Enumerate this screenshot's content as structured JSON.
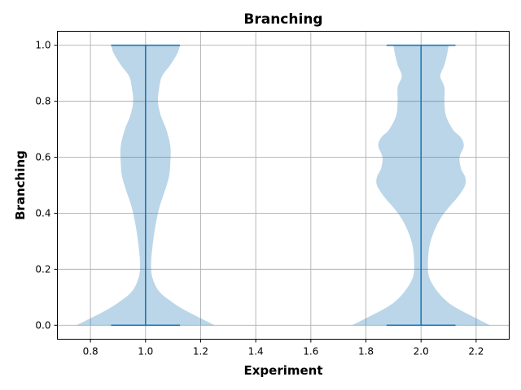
{
  "chart_data": {
    "type": "violin",
    "title": "Branching",
    "xlabel": "Experiment",
    "ylabel": "Branching",
    "xlim": [
      0.68,
      2.32
    ],
    "ylim": [
      -0.05,
      1.05
    ],
    "xticks": [
      0.8,
      1.0,
      1.2,
      1.4,
      1.6,
      1.8,
      2.0,
      2.2
    ],
    "xtick_labels": [
      "0.8",
      "1.0",
      "1.2",
      "1.4",
      "1.6",
      "1.8",
      "2.0",
      "2.2"
    ],
    "yticks": [
      0.0,
      0.2,
      0.4,
      0.6,
      0.8,
      1.0
    ],
    "ytick_labels": [
      "0.0",
      "0.2",
      "0.4",
      "0.6",
      "0.8",
      "1.0"
    ],
    "grid": true,
    "violin_color": "#1f77b4",
    "violins": [
      {
        "position": 1.0,
        "min": 0.0,
        "max": 1.0,
        "density": [
          [
            0.0,
            0.25
          ],
          [
            0.02,
            0.21
          ],
          [
            0.05,
            0.15
          ],
          [
            0.08,
            0.1
          ],
          [
            0.12,
            0.05
          ],
          [
            0.17,
            0.025
          ],
          [
            0.22,
            0.02
          ],
          [
            0.28,
            0.025
          ],
          [
            0.35,
            0.035
          ],
          [
            0.42,
            0.05
          ],
          [
            0.48,
            0.07
          ],
          [
            0.53,
            0.085
          ],
          [
            0.58,
            0.09
          ],
          [
            0.64,
            0.09
          ],
          [
            0.7,
            0.075
          ],
          [
            0.75,
            0.055
          ],
          [
            0.8,
            0.045
          ],
          [
            0.85,
            0.05
          ],
          [
            0.89,
            0.06
          ],
          [
            0.93,
            0.09
          ],
          [
            0.97,
            0.115
          ],
          [
            1.0,
            0.125
          ]
        ]
      },
      {
        "position": 2.0,
        "min": 0.0,
        "max": 1.0,
        "density": [
          [
            0.0,
            0.25
          ],
          [
            0.02,
            0.21
          ],
          [
            0.05,
            0.15
          ],
          [
            0.08,
            0.1
          ],
          [
            0.12,
            0.06
          ],
          [
            0.17,
            0.03
          ],
          [
            0.22,
            0.025
          ],
          [
            0.28,
            0.03
          ],
          [
            0.33,
            0.045
          ],
          [
            0.38,
            0.07
          ],
          [
            0.42,
            0.1
          ],
          [
            0.46,
            0.135
          ],
          [
            0.5,
            0.16
          ],
          [
            0.53,
            0.16
          ],
          [
            0.56,
            0.145
          ],
          [
            0.6,
            0.14
          ],
          [
            0.64,
            0.155
          ],
          [
            0.67,
            0.145
          ],
          [
            0.7,
            0.115
          ],
          [
            0.75,
            0.09
          ],
          [
            0.8,
            0.085
          ],
          [
            0.85,
            0.085
          ],
          [
            0.89,
            0.07
          ],
          [
            0.93,
            0.085
          ],
          [
            0.97,
            0.095
          ],
          [
            1.0,
            0.1
          ]
        ]
      }
    ]
  }
}
